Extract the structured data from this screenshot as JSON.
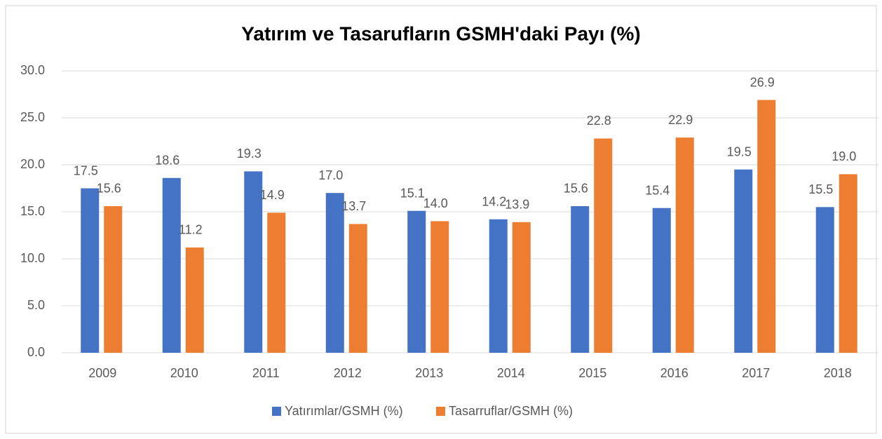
{
  "chart_data": {
    "type": "bar",
    "title": "Yatırım ve Tasarufların GSMH'daki Payı (%)",
    "categories": [
      "2009",
      "2010",
      "2011",
      "2012",
      "2013",
      "2014",
      "2015",
      "2016",
      "2017",
      "2018"
    ],
    "series": [
      {
        "name": "Yatırımlar/GSMH (%)",
        "color": "#4472c4",
        "values": [
          17.5,
          18.6,
          19.3,
          17.0,
          15.1,
          14.2,
          15.6,
          15.4,
          19.5,
          15.5
        ],
        "value_labels": [
          "17.5",
          "18.6",
          "19.3",
          "17.0",
          "15.1",
          "14.2",
          "15.6",
          "15.4",
          "19.5",
          "15.5"
        ]
      },
      {
        "name": "Tasarruflar/GSMH (%)",
        "color": "#ed7d31",
        "values": [
          15.6,
          11.2,
          14.9,
          13.7,
          14.0,
          13.9,
          22.8,
          22.9,
          26.9,
          19.0
        ],
        "value_labels": [
          "15.6",
          "11.2",
          "14.9",
          "13.7",
          "14.0",
          "13.9",
          "22.8",
          "22.9",
          "26.9",
          "19.0"
        ]
      }
    ],
    "ylim": [
      0,
      30
    ],
    "yticks": [
      {
        "value": 0,
        "label": "0.0"
      },
      {
        "value": 5,
        "label": "5.0"
      },
      {
        "value": 10,
        "label": "10.0"
      },
      {
        "value": 15,
        "label": "15.0"
      },
      {
        "value": 20,
        "label": "20.0"
      },
      {
        "value": 25,
        "label": "25.0"
      },
      {
        "value": 30,
        "label": "30.0"
      }
    ],
    "grid": true,
    "legend": "bottom"
  }
}
